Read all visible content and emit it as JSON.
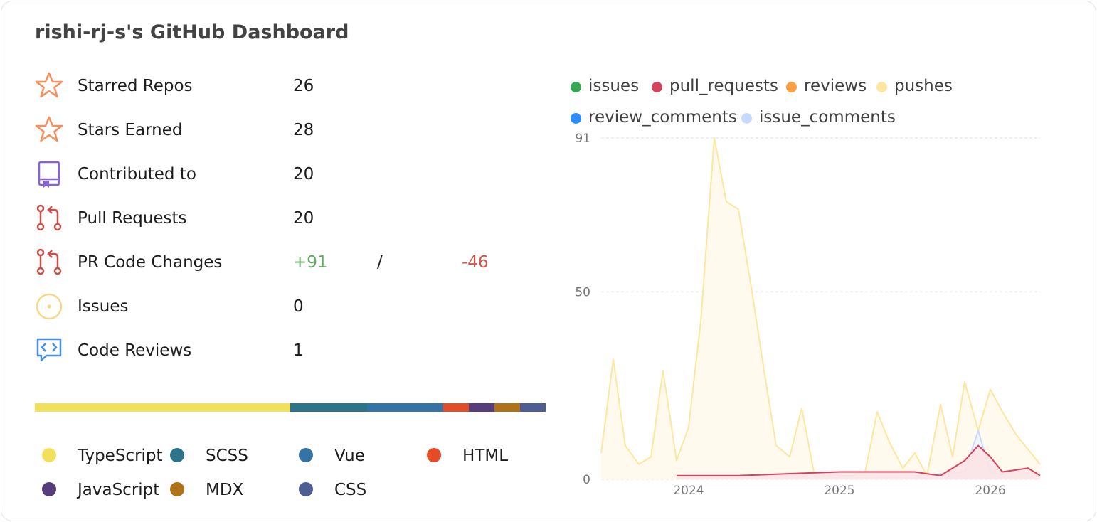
{
  "title": "rishi-rj-s's GitHub Dashboard",
  "stats": [
    {
      "label": "Starred Repos",
      "value": "26",
      "icon": "star-icon",
      "color": "#f58f5c"
    },
    {
      "label": "Stars Earned",
      "value": "28",
      "icon": "star-icon",
      "color": "#f58f5c"
    },
    {
      "label": "Contributed to",
      "value": "20",
      "icon": "repo-icon",
      "color": "#8a63d2"
    },
    {
      "label": "Pull Requests",
      "value": "20",
      "icon": "pull-request-icon",
      "color": "#c9504a"
    },
    {
      "label": "PR Code Changes",
      "additions": "+91",
      "separator": "/",
      "deletions": "-46",
      "icon": "pull-request-icon",
      "color": "#c9504a"
    },
    {
      "label": "Issues",
      "value": "0",
      "icon": "issue-icon",
      "color": "#f5d98a"
    },
    {
      "label": "Code Reviews",
      "value": "1",
      "icon": "code-review-icon",
      "color": "#4a90e2"
    }
  ],
  "languages": [
    {
      "name": "TypeScript",
      "color": "#f1e05a",
      "fraction": 0.5
    },
    {
      "name": "SCSS",
      "color": "#2b7489",
      "fraction": 0.15
    },
    {
      "name": "Vue",
      "color": "#3572a5",
      "fraction": 0.15
    },
    {
      "name": "HTML",
      "color": "#e34c26",
      "fraction": 0.05
    },
    {
      "name": "JavaScript",
      "color": "#563d7c",
      "fraction": 0.05
    },
    {
      "name": "MDX",
      "color": "#b07219",
      "fraction": 0.05
    },
    {
      "name": "CSS",
      "color": "#4f5d95",
      "fraction": 0.05
    }
  ],
  "chart_data": {
    "type": "area",
    "ylim": [
      0,
      91
    ],
    "yticks": [
      "0",
      "50",
      "91"
    ],
    "xticks": [
      {
        "label": "2024",
        "x": 2024.0
      },
      {
        "label": "2025",
        "x": 2025.0
      },
      {
        "label": "2026",
        "x": 2026.0
      }
    ],
    "xlim": [
      2023.42,
      2026.33
    ],
    "grid": true,
    "legend_position": "top",
    "series": [
      {
        "name": "issues",
        "color": "#34a853",
        "x": [],
        "y": []
      },
      {
        "name": "pull_requests",
        "color": "#d6415c",
        "fill": "#fbe3e7",
        "x": [
          2023.92,
          2024.33,
          2025.0,
          2025.5,
          2025.58,
          2025.67,
          2025.83,
          2025.92,
          2026.0,
          2026.08,
          2026.17,
          2026.25,
          2026.33
        ],
        "y": [
          1,
          1,
          2,
          2,
          1.5,
          1,
          5,
          9,
          6,
          2,
          2.5,
          3,
          1
        ]
      },
      {
        "name": "reviews",
        "color": "#ff9f40",
        "x": [],
        "y": []
      },
      {
        "name": "pushes",
        "color": "#fde7a0",
        "fill": "#fffaeb",
        "x": [
          2023.42,
          2023.5,
          2023.58,
          2023.67,
          2023.75,
          2023.83,
          2023.92,
          2024.0,
          2024.08,
          2024.17,
          2024.25,
          2024.33,
          2024.42,
          2024.5,
          2024.58,
          2024.67,
          2024.75,
          2024.83,
          2024.92,
          2025.0,
          2025.08,
          2025.17,
          2025.25,
          2025.33,
          2025.42,
          2025.5,
          2025.58,
          2025.67,
          2025.75,
          2025.83,
          2025.92,
          2026.0,
          2026.08,
          2026.17,
          2026.33
        ],
        "y": [
          7,
          32,
          9,
          4,
          6,
          29,
          5,
          14,
          42,
          91,
          74,
          72,
          50,
          29,
          9,
          6,
          19,
          2,
          1,
          1,
          1,
          2,
          18,
          10,
          3,
          7,
          1,
          20,
          6,
          26,
          13,
          24,
          18,
          12,
          4
        ]
      },
      {
        "name": "review_comments",
        "color": "#2b8cff",
        "x": [],
        "y": []
      },
      {
        "name": "issue_comments",
        "color": "#c4dbff",
        "fill": "#eef5ff",
        "x": [
          2025.5,
          2025.58,
          2025.67,
          2025.83,
          2025.92,
          2026.0,
          2026.08
        ],
        "y": [
          1,
          1,
          1.5,
          2,
          13,
          2,
          1
        ]
      }
    ]
  }
}
